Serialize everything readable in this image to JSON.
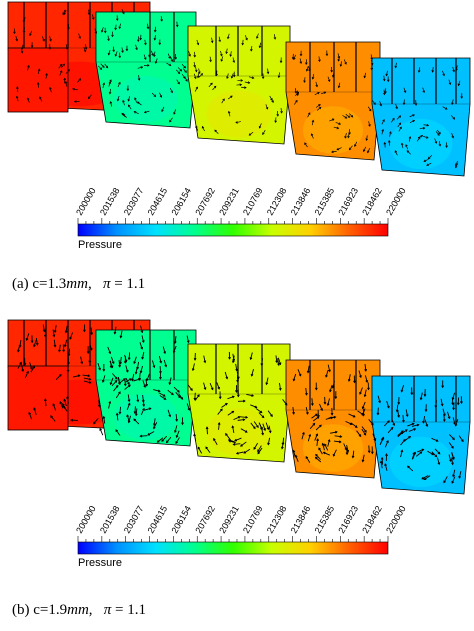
{
  "panels": [
    {
      "id": "a",
      "caption_prefix": "(a) c=1.3",
      "caption_unit": "mm",
      "caption_sep": ",",
      "caption_pi": "π",
      "caption_eq": "= 1.1"
    },
    {
      "id": "b",
      "caption_prefix": "(b) c=1.9",
      "caption_unit": "mm",
      "caption_sep": ",",
      "caption_pi": "π",
      "caption_eq": "= 1.1"
    }
  ],
  "legend": {
    "title": "Pressure",
    "ticks": [
      "200000",
      "201538",
      "203077",
      "204615",
      "206154",
      "207692",
      "209231",
      "210769",
      "212308",
      "213846",
      "215385",
      "216923",
      "218462",
      "220000"
    ],
    "min": 200000,
    "max": 220000
  },
  "colors": {
    "cavity_pressures": [
      219000,
      207500,
      213000,
      216500,
      204000
    ],
    "colormap": [
      "#0000ff",
      "#0090ff",
      "#00e0ff",
      "#00ff90",
      "#30ff00",
      "#c8ff00",
      "#ffd000",
      "#ff6000",
      "#ff0000"
    ]
  }
}
